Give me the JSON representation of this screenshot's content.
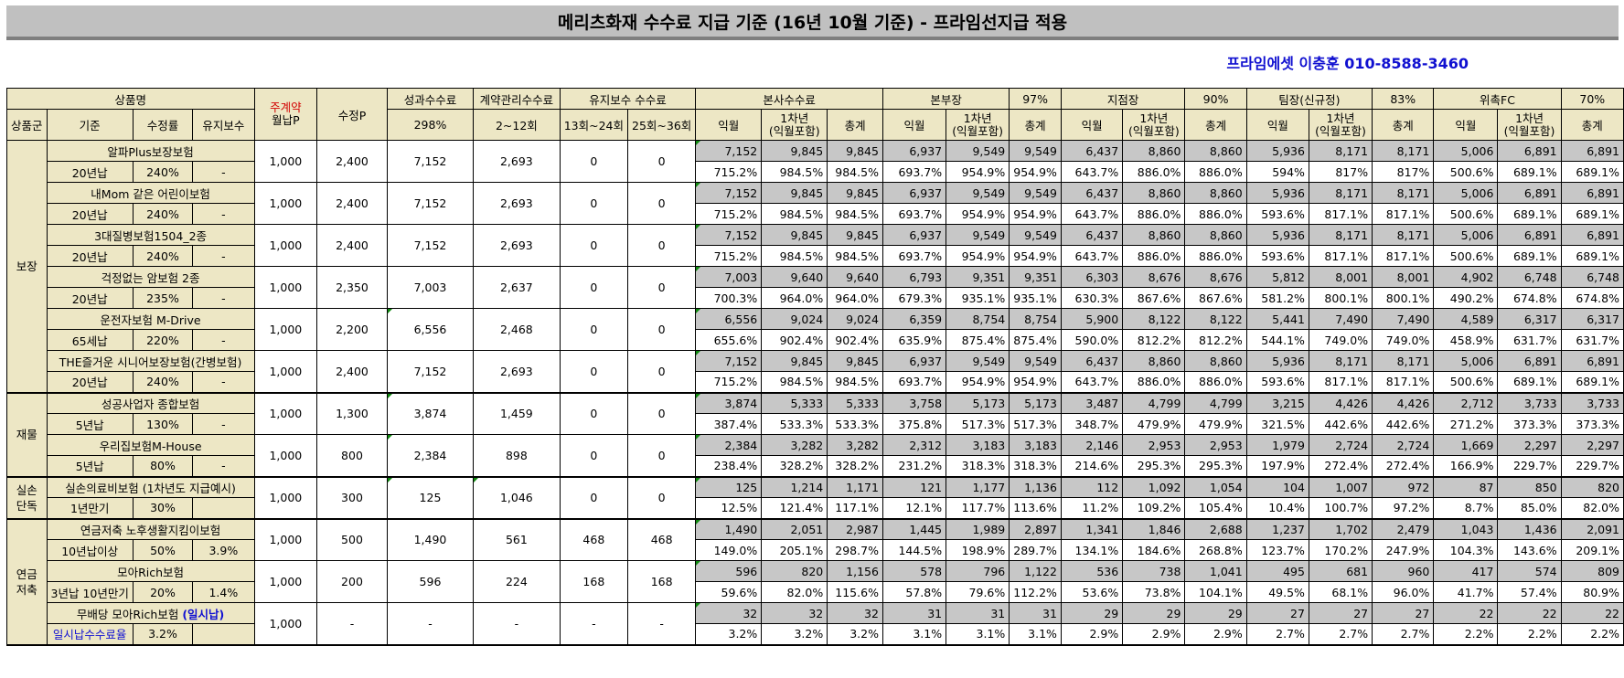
{
  "title": "메리츠화재 수수료 지급 기준 (16년 10월 기준) - 프라임선지급 적용",
  "contact": "프라임에셋 이충훈 010-8588-3460",
  "headers": {
    "product": "상품명",
    "group": "상품군",
    "criteria": "기준",
    "rate": "수정률",
    "maint": "유지보수",
    "main_contract_a": "주계약",
    "main_contract_b": "월납P",
    "adjusted_p": "수정P",
    "perf_fee": "성과수수료",
    "perf_pct": "298%",
    "mgmt_fee": "계약관리수수료",
    "mgmt_range": "2~12회",
    "maint_fee": "유지보수 수수료",
    "maint_13": "13회~24회",
    "maint_25": "25회~36회",
    "col_month": "익월",
    "col_year1_a": "1차년",
    "col_year1_b": "(익월포함)",
    "col_total": "총계",
    "levels": [
      {
        "name": "본사수수료",
        "pct": ""
      },
      {
        "name": "본부장",
        "pct": "97%"
      },
      {
        "name": "지점장",
        "pct": "90%"
      },
      {
        "name": "팀장(신규정)",
        "pct": "83%"
      },
      {
        "name": "위촉FC",
        "pct": "70%"
      }
    ]
  },
  "groups": [
    {
      "name": "보장",
      "rowspan": 12
    },
    {
      "name": "재물",
      "rowspan": 4
    },
    {
      "name": "실손단독",
      "rowspan": 2
    },
    {
      "name": "연금저축",
      "rowspan": 6
    }
  ],
  "products": [
    {
      "name": "알파Plus보장보험",
      "name_note": "",
      "criteria": "20년납",
      "rate": "240%",
      "maint": "-",
      "main_p": "1,000",
      "adj_p": "2,400",
      "perf": "7,152",
      "mgmt": "2,693",
      "m13": "0",
      "m25": "0",
      "amounts": [
        "7,152",
        "9,845",
        "9,845",
        "6,937",
        "9,549",
        "9,549",
        "6,437",
        "8,860",
        "8,860",
        "5,936",
        "8,171",
        "8,171",
        "5,006",
        "6,891",
        "6,891"
      ],
      "pcts": [
        "715.2%",
        "984.5%",
        "984.5%",
        "693.7%",
        "954.9%",
        "954.9%",
        "643.7%",
        "886.0%",
        "886.0%",
        "594%",
        "817%",
        "817%",
        "500.6%",
        "689.1%",
        "689.1%"
      ]
    },
    {
      "name": "내Mom 같은 어린이보험",
      "name_note": "",
      "criteria": "20년납",
      "rate": "240%",
      "maint": "-",
      "main_p": "1,000",
      "adj_p": "2,400",
      "perf": "7,152",
      "mgmt": "2,693",
      "m13": "0",
      "m25": "0",
      "amounts": [
        "7,152",
        "9,845",
        "9,845",
        "6,937",
        "9,549",
        "9,549",
        "6,437",
        "8,860",
        "8,860",
        "5,936",
        "8,171",
        "8,171",
        "5,006",
        "6,891",
        "6,891"
      ],
      "pcts": [
        "715.2%",
        "984.5%",
        "984.5%",
        "693.7%",
        "954.9%",
        "954.9%",
        "643.7%",
        "886.0%",
        "886.0%",
        "593.6%",
        "817.1%",
        "817.1%",
        "500.6%",
        "689.1%",
        "689.1%"
      ]
    },
    {
      "name": "3대질병보험1504_2종",
      "name_note": "",
      "criteria": "20년납",
      "rate": "240%",
      "maint": "-",
      "main_p": "1,000",
      "adj_p": "2,400",
      "perf": "7,152",
      "mgmt": "2,693",
      "m13": "0",
      "m25": "0",
      "amounts": [
        "7,152",
        "9,845",
        "9,845",
        "6,937",
        "9,549",
        "9,549",
        "6,437",
        "8,860",
        "8,860",
        "5,936",
        "8,171",
        "8,171",
        "5,006",
        "6,891",
        "6,891"
      ],
      "pcts": [
        "715.2%",
        "984.5%",
        "984.5%",
        "693.7%",
        "954.9%",
        "954.9%",
        "643.7%",
        "886.0%",
        "886.0%",
        "593.6%",
        "817.1%",
        "817.1%",
        "500.6%",
        "689.1%",
        "689.1%"
      ]
    },
    {
      "name": "걱정없는 암보험 2종",
      "name_note": "",
      "criteria": "20년납",
      "rate": "235%",
      "maint": "-",
      "main_p": "1,000",
      "adj_p": "2,350",
      "perf": "7,003",
      "mgmt": "2,637",
      "m13": "0",
      "m25": "0",
      "amounts": [
        "7,003",
        "9,640",
        "9,640",
        "6,793",
        "9,351",
        "9,351",
        "6,303",
        "8,676",
        "8,676",
        "5,812",
        "8,001",
        "8,001",
        "4,902",
        "6,748",
        "6,748"
      ],
      "pcts": [
        "700.3%",
        "964.0%",
        "964.0%",
        "679.3%",
        "935.1%",
        "935.1%",
        "630.3%",
        "867.6%",
        "867.6%",
        "581.2%",
        "800.1%",
        "800.1%",
        "490.2%",
        "674.8%",
        "674.8%"
      ]
    },
    {
      "name": "운전자보험 M-Drive",
      "name_note": "",
      "criteria": "65세납",
      "rate": "220%",
      "maint": "-",
      "main_p": "1,000",
      "adj_p": "2,200",
      "perf": "6,556",
      "mgmt": "2,468",
      "m13": "0",
      "m25": "0",
      "amounts": [
        "6,556",
        "9,024",
        "9,024",
        "6,359",
        "8,754",
        "8,754",
        "5,900",
        "8,122",
        "8,122",
        "5,441",
        "7,490",
        "7,490",
        "4,589",
        "6,317",
        "6,317"
      ],
      "pcts": [
        "655.6%",
        "902.4%",
        "902.4%",
        "635.9%",
        "875.4%",
        "875.4%",
        "590.0%",
        "812.2%",
        "812.2%",
        "544.1%",
        "749.0%",
        "749.0%",
        "458.9%",
        "631.7%",
        "631.7%"
      ]
    },
    {
      "name": "THE즐거운 시니어보장보험(간병보험)",
      "name_note": "",
      "criteria": "20년납",
      "rate": "240%",
      "maint": "-",
      "main_p": "1,000",
      "adj_p": "2,400",
      "perf": "7,152",
      "mgmt": "2,693",
      "m13": "0",
      "m25": "0",
      "amounts": [
        "7,152",
        "9,845",
        "9,845",
        "6,937",
        "9,549",
        "9,549",
        "6,437",
        "8,860",
        "8,860",
        "5,936",
        "8,171",
        "8,171",
        "5,006",
        "6,891",
        "6,891"
      ],
      "pcts": [
        "715.2%",
        "984.5%",
        "984.5%",
        "693.7%",
        "954.9%",
        "954.9%",
        "643.7%",
        "886.0%",
        "886.0%",
        "593.6%",
        "817.1%",
        "817.1%",
        "500.6%",
        "689.1%",
        "689.1%"
      ]
    },
    {
      "name": "성공사업자 종합보험",
      "name_note": "",
      "criteria": "5년납",
      "rate": "130%",
      "maint": "-",
      "main_p": "1,000",
      "adj_p": "1,300",
      "perf": "3,874",
      "mgmt": "1,459",
      "m13": "0",
      "m25": "0",
      "amounts": [
        "3,874",
        "5,333",
        "5,333",
        "3,758",
        "5,173",
        "5,173",
        "3,487",
        "4,799",
        "4,799",
        "3,215",
        "4,426",
        "4,426",
        "2,712",
        "3,733",
        "3,733"
      ],
      "pcts": [
        "387.4%",
        "533.3%",
        "533.3%",
        "375.8%",
        "517.3%",
        "517.3%",
        "348.7%",
        "479.9%",
        "479.9%",
        "321.5%",
        "442.6%",
        "442.6%",
        "271.2%",
        "373.3%",
        "373.3%"
      ]
    },
    {
      "name": "우리집보험M-House",
      "name_note": "",
      "criteria": "5년납",
      "rate": "80%",
      "maint": "-",
      "main_p": "1,000",
      "adj_p": "800",
      "perf": "2,384",
      "mgmt": "898",
      "m13": "0",
      "m25": "0",
      "amounts": [
        "2,384",
        "3,282",
        "3,282",
        "2,312",
        "3,183",
        "3,183",
        "2,146",
        "2,953",
        "2,953",
        "1,979",
        "2,724",
        "2,724",
        "1,669",
        "2,297",
        "2,297"
      ],
      "pcts": [
        "238.4%",
        "328.2%",
        "328.2%",
        "231.2%",
        "318.3%",
        "318.3%",
        "214.6%",
        "295.3%",
        "295.3%",
        "197.9%",
        "272.4%",
        "272.4%",
        "166.9%",
        "229.7%",
        "229.7%"
      ]
    },
    {
      "name": "실손의료비보험 (1차년도 지급예시)",
      "name_note": "",
      "criteria": "1년만기",
      "rate": "30%",
      "maint": "",
      "main_p": "1,000",
      "adj_p": "300",
      "perf": "125",
      "mgmt": "1,046",
      "m13": "0",
      "m25": "0",
      "amounts": [
        "125",
        "1,214",
        "1,171",
        "121",
        "1,177",
        "1,136",
        "112",
        "1,092",
        "1,054",
        "104",
        "1,007",
        "972",
        "87",
        "850",
        "820"
      ],
      "pcts": [
        "12.5%",
        "121.4%",
        "117.1%",
        "12.1%",
        "117.7%",
        "113.6%",
        "11.2%",
        "109.2%",
        "105.4%",
        "10.4%",
        "100.7%",
        "97.2%",
        "8.7%",
        "85.0%",
        "82.0%"
      ]
    },
    {
      "name": "연금저축 노후생활지킴이보험",
      "name_note": "",
      "criteria": "10년납이상",
      "rate": "50%",
      "maint": "3.9%",
      "main_p": "1,000",
      "adj_p": "500",
      "perf": "1,490",
      "mgmt": "561",
      "m13": "468",
      "m25": "468",
      "amounts": [
        "1,490",
        "2,051",
        "2,987",
        "1,445",
        "1,989",
        "2,897",
        "1,341",
        "1,846",
        "2,688",
        "1,237",
        "1,702",
        "2,479",
        "1,043",
        "1,436",
        "2,091"
      ],
      "pcts": [
        "149.0%",
        "205.1%",
        "298.7%",
        "144.5%",
        "198.9%",
        "289.7%",
        "134.1%",
        "184.6%",
        "268.8%",
        "123.7%",
        "170.2%",
        "247.9%",
        "104.3%",
        "143.6%",
        "209.1%"
      ]
    },
    {
      "name": "모아Rich보험",
      "name_note": "",
      "criteria": "3년납 10년만기",
      "rate": "20%",
      "maint": "1.4%",
      "main_p": "1,000",
      "adj_p": "200",
      "perf": "596",
      "mgmt": "224",
      "m13": "168",
      "m25": "168",
      "amounts": [
        "596",
        "820",
        "1,156",
        "578",
        "796",
        "1,122",
        "536",
        "738",
        "1,041",
        "495",
        "681",
        "960",
        "417",
        "574",
        "809"
      ],
      "pcts": [
        "59.6%",
        "82.0%",
        "115.6%",
        "57.8%",
        "79.6%",
        "112.2%",
        "53.6%",
        "73.8%",
        "104.1%",
        "49.5%",
        "68.1%",
        "96.0%",
        "41.7%",
        "57.4%",
        "80.9%"
      ]
    },
    {
      "name": "무배당 모아Rich보험",
      "name_note": "(일시납)",
      "criteria": "일시납수수료율",
      "rate": "3.2%",
      "maint": "",
      "main_p": "1,000",
      "adj_p": "-",
      "perf": "-",
      "mgmt": "-",
      "m13": "-",
      "m25": "-",
      "amounts": [
        "32",
        "32",
        "32",
        "31",
        "31",
        "31",
        "29",
        "29",
        "29",
        "27",
        "27",
        "27",
        "22",
        "22",
        "22"
      ],
      "pcts": [
        "3.2%",
        "3.2%",
        "3.2%",
        "3.1%",
        "3.1%",
        "3.1%",
        "2.9%",
        "2.9%",
        "2.9%",
        "2.7%",
        "2.7%",
        "2.7%",
        "2.2%",
        "2.2%",
        "2.2%"
      ]
    }
  ]
}
